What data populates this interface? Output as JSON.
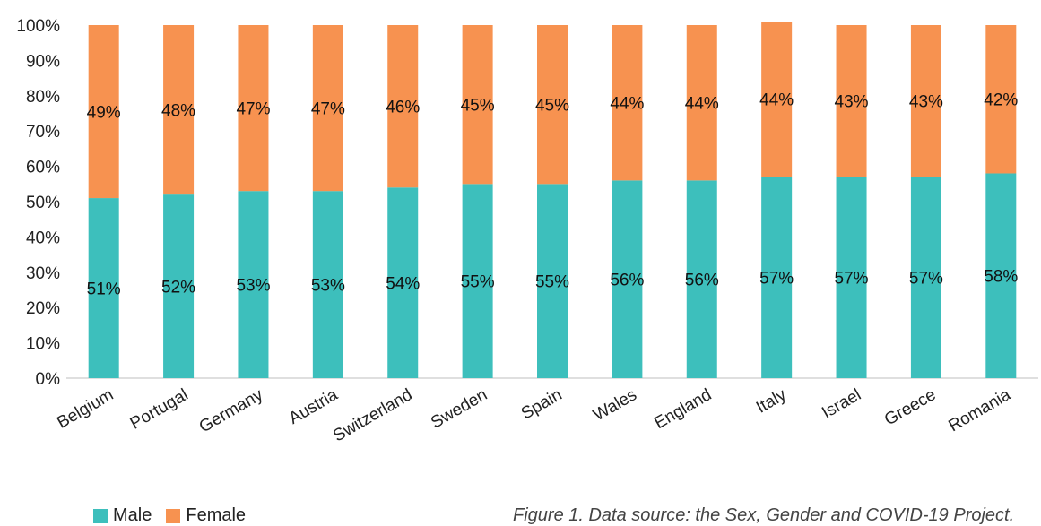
{
  "chart_data": {
    "type": "bar",
    "stacked": true,
    "categories": [
      "Belgium",
      "Portugal",
      "Germany",
      "Austria",
      "Switzerland",
      "Sweden",
      "Spain",
      "Wales",
      "England",
      "Italy",
      "Israel",
      "Greece",
      "Romania"
    ],
    "series": [
      {
        "name": "Male",
        "color": "#3dbfbc",
        "values": [
          51,
          52,
          53,
          53,
          54,
          55,
          55,
          56,
          56,
          57,
          57,
          57,
          58
        ],
        "labels": [
          "51%",
          "52%",
          "53%",
          "53%",
          "54%",
          "55%",
          "55%",
          "56%",
          "56%",
          "57%",
          "57%",
          "57%",
          "58%"
        ]
      },
      {
        "name": "Female",
        "color": "#f79250",
        "values": [
          49,
          48,
          47,
          47,
          46,
          45,
          45,
          44,
          44,
          44,
          43,
          43,
          42
        ],
        "labels": [
          "49%",
          "48%",
          "47%",
          "47%",
          "46%",
          "45%",
          "45%",
          "44%",
          "44%",
          "44%",
          "43%",
          "43%",
          "42%"
        ]
      }
    ],
    "ylim": [
      0,
      100
    ],
    "yticks": [
      "0%",
      "10%",
      "20%",
      "30%",
      "40%",
      "50%",
      "60%",
      "70%",
      "80%",
      "90%",
      "100%"
    ],
    "legend_position": "bottom-left",
    "grid": false
  },
  "caption": "Figure 1. Data source: the Sex, Gender and COVID-19 Project."
}
